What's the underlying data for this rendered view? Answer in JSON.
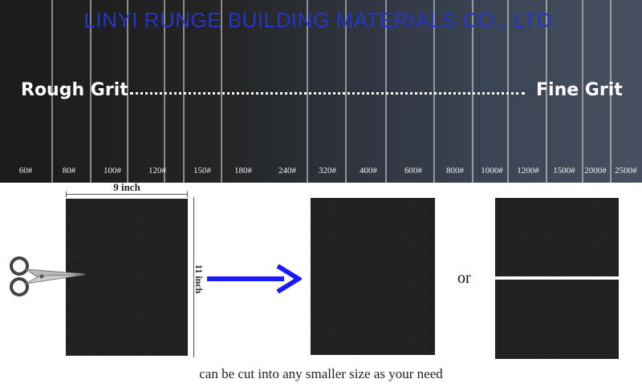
{
  "banner": {
    "watermark": "LINYI RUNGE BUILDING MATERIALS CO., LTD.",
    "rough_label": "Rough Grit",
    "fine_label": "Fine Grit",
    "grits": [
      "60#",
      "80#",
      "100#",
      "120#",
      "150#",
      "180#",
      "240#",
      "320#",
      "400#",
      "600#",
      "800#",
      "1000#",
      "1200#",
      "1500#",
      "2000#",
      "2500#"
    ]
  },
  "diagram": {
    "width_label": "9 inch",
    "height_label": "11 inch",
    "or_label": "or",
    "caption": "can be cut into any smaller size as your need"
  },
  "colors": {
    "watermark": "#2535c9",
    "arrow": "#1a1aff",
    "sheet": "#1d1d1d"
  },
  "icons": [
    "scissors-icon",
    "arrow-right-icon"
  ]
}
